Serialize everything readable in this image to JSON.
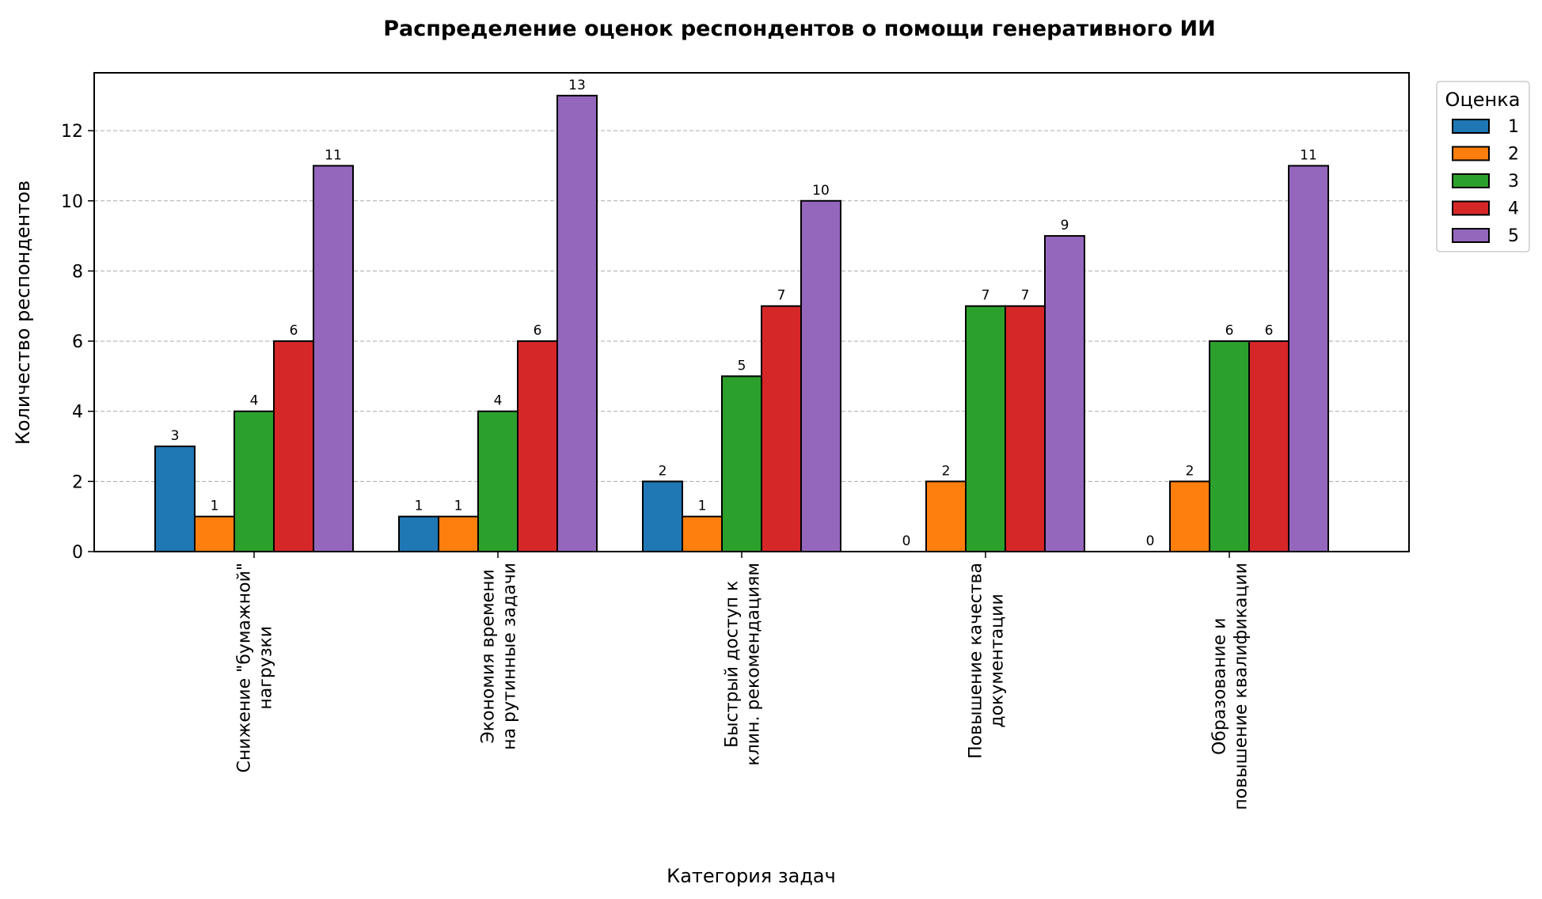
{
  "chart_data": {
    "type": "bar",
    "title": "Распределение оценок респондентов о помощи генеративного ИИ",
    "xlabel": "Категория задач",
    "ylabel": "Количество респондентов",
    "categories": [
      [
        "Снижение \"бумажной\"",
        "нагрузки"
      ],
      [
        "Экономия времени",
        "на рутинные задачи"
      ],
      [
        "Быстрый доступ к",
        "клин. рекомендациям"
      ],
      [
        "Повышение качества",
        "документации"
      ],
      [
        "Образование и",
        "повышение квалификации"
      ]
    ],
    "legend_title": "Оценка",
    "legend_placement": "outside-right-top",
    "series": [
      {
        "name": "1",
        "color": "#1f77b4",
        "values": [
          3,
          1,
          2,
          0,
          0
        ]
      },
      {
        "name": "2",
        "color": "#ff7f0e",
        "values": [
          1,
          1,
          1,
          2,
          2
        ]
      },
      {
        "name": "3",
        "color": "#2ca02c",
        "values": [
          4,
          4,
          5,
          7,
          6
        ]
      },
      {
        "name": "4",
        "color": "#d62728",
        "values": [
          6,
          6,
          7,
          7,
          6
        ]
      },
      {
        "name": "5",
        "color": "#9467bd",
        "values": [
          11,
          13,
          10,
          9,
          11
        ]
      }
    ],
    "yticks": [
      0,
      2,
      4,
      6,
      8,
      10,
      12
    ],
    "ylim": [
      0,
      13.65
    ],
    "grid": "horizontal dashed",
    "data_labels": true
  }
}
